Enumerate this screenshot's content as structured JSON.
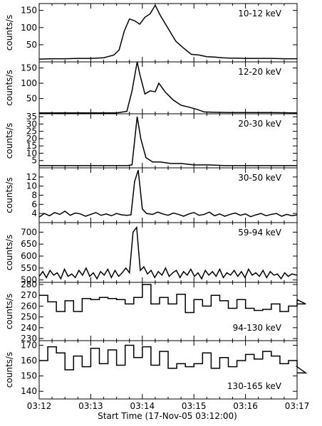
{
  "chart_data": {
    "type": "line",
    "xlabel": "Start Time (17-Nov-05 03:12:00)",
    "xlim": [
      "03:12",
      "03:17"
    ],
    "x_ticks": [
      "03:12",
      "03:13",
      "03:14",
      "03:15",
      "03:16",
      "03:17"
    ],
    "panels": [
      {
        "label": "10-12 keV",
        "ylabel": "counts/s",
        "style": "line",
        "ylim": [
          0,
          170
        ],
        "y_ticks": [
          50,
          100,
          150
        ],
        "x_minutes": [
          0,
          0.25,
          0.5,
          0.75,
          1.0,
          1.25,
          1.45,
          1.55,
          1.65,
          1.75,
          1.85,
          1.95,
          2.05,
          2.15,
          2.25,
          2.35,
          2.45,
          2.55,
          2.65,
          2.8,
          2.95,
          3.1,
          3.25,
          3.4,
          3.55,
          3.7,
          3.85,
          4.0,
          4.25,
          4.5,
          4.75,
          5.0
        ],
        "values": [
          8,
          9,
          9,
          10,
          10,
          12,
          20,
          35,
          90,
          125,
          120,
          110,
          130,
          140,
          165,
          135,
          110,
          85,
          60,
          40,
          22,
          20,
          15,
          14,
          12,
          11,
          11,
          10,
          10,
          10,
          9,
          9
        ]
      },
      {
        "label": "12-20 keV",
        "ylabel": "counts/s",
        "style": "line",
        "ylim": [
          0,
          170
        ],
        "y_ticks": [
          50,
          100,
          150
        ],
        "x_minutes": [
          0,
          0.25,
          0.5,
          0.75,
          1.0,
          1.25,
          1.5,
          1.7,
          1.8,
          1.9,
          1.95,
          2.05,
          2.15,
          2.25,
          2.32,
          2.45,
          2.6,
          2.75,
          2.9,
          3.05,
          3.2,
          3.4,
          3.7,
          4.0,
          4.5,
          5.0
        ],
        "values": [
          3,
          3,
          3,
          3,
          3,
          3,
          3,
          8,
          75,
          170,
          130,
          65,
          75,
          72,
          100,
          70,
          45,
          28,
          22,
          15,
          6,
          5,
          4,
          4,
          4,
          3
        ]
      },
      {
        "label": "20-30 keV",
        "ylabel": "counts/s",
        "style": "line",
        "ylim": [
          0,
          37
        ],
        "y_ticks": [
          5,
          10,
          15,
          20,
          25,
          30,
          35
        ],
        "x_minutes": [
          0,
          0.3,
          0.6,
          0.9,
          1.2,
          1.5,
          1.7,
          1.8,
          1.9,
          1.97,
          2.07,
          2.2,
          2.35,
          2.55,
          2.75,
          3.0,
          3.3,
          3.6,
          3.9,
          4.2,
          4.5,
          4.8,
          5.0
        ],
        "values": [
          1.5,
          1.5,
          1.5,
          1.5,
          1.5,
          1.5,
          1.5,
          2,
          35,
          20,
          7,
          4,
          4,
          3,
          3,
          2,
          2,
          1.5,
          1.5,
          1.5,
          1.5,
          1.5,
          1.5
        ]
      },
      {
        "label": "30-50 keV",
        "ylabel": "counts/s",
        "style": "line",
        "ylim": [
          2,
          14
        ],
        "y_ticks": [
          4,
          6,
          8,
          10,
          12
        ],
        "x_minutes": [
          0,
          0.1,
          0.2,
          0.3,
          0.4,
          0.5,
          0.6,
          0.7,
          0.8,
          0.9,
          1.0,
          1.1,
          1.2,
          1.3,
          1.4,
          1.5,
          1.6,
          1.7,
          1.78,
          1.85,
          1.92,
          2.0,
          2.08,
          2.2,
          2.3,
          2.4,
          2.5,
          2.6,
          2.7,
          2.8,
          2.9,
          3.0,
          3.1,
          3.2,
          3.3,
          3.4,
          3.5,
          3.6,
          3.7,
          3.8,
          3.9,
          4.0,
          4.1,
          4.2,
          4.3,
          4.4,
          4.5,
          4.6,
          4.7,
          4.8,
          4.9,
          5.0
        ],
        "values": [
          3.2,
          4.0,
          3.5,
          4.2,
          3.8,
          4.5,
          3.6,
          4.1,
          3.9,
          3.4,
          3.8,
          4.2,
          3.6,
          3.9,
          3.5,
          4.0,
          3.7,
          3.6,
          3.7,
          11,
          13.5,
          5,
          4,
          3.8,
          4.3,
          3.9,
          3.6,
          4.1,
          3.8,
          3.4,
          3.9,
          4.2,
          3.6,
          3.8,
          4.3,
          3.5,
          3.9,
          3.4,
          3.8,
          4.1,
          3.6,
          3.9,
          3.3,
          3.7,
          4.0,
          3.5,
          3.8,
          4.0,
          3.4,
          3.8,
          3.5,
          3.7
        ]
      },
      {
        "label": "59-94 keV",
        "ylabel": "counts/s",
        "style": "line",
        "ylim": [
          490,
          740
        ],
        "y_ticks": [
          500,
          550,
          600,
          650,
          700
        ],
        "x_minutes": [
          0,
          0.07,
          0.14,
          0.21,
          0.28,
          0.35,
          0.42,
          0.49,
          0.56,
          0.63,
          0.7,
          0.77,
          0.84,
          0.91,
          0.98,
          1.05,
          1.12,
          1.19,
          1.26,
          1.33,
          1.4,
          1.47,
          1.54,
          1.61,
          1.68,
          1.75,
          1.82,
          1.89,
          1.96,
          2.03,
          2.1,
          2.17,
          2.24,
          2.31,
          2.38,
          2.45,
          2.52,
          2.59,
          2.66,
          2.73,
          2.8,
          2.87,
          2.94,
          3.01,
          3.08,
          3.15,
          3.22,
          3.29,
          3.36,
          3.43,
          3.5,
          3.57,
          3.64,
          3.71,
          3.78,
          3.85,
          3.92,
          3.99,
          4.06,
          4.13,
          4.2,
          4.27,
          4.34,
          4.41,
          4.48,
          4.55,
          4.62,
          4.69,
          4.76,
          4.83,
          4.9,
          5.0
        ],
        "values": [
          515,
          535,
          510,
          540,
          520,
          530,
          505,
          545,
          515,
          525,
          510,
          540,
          520,
          550,
          515,
          530,
          505,
          535,
          520,
          545,
          510,
          540,
          515,
          530,
          550,
          530,
          700,
          720,
          540,
          555,
          525,
          540,
          510,
          535,
          520,
          550,
          515,
          530,
          540,
          510,
          535,
          520,
          545,
          515,
          530,
          505,
          540,
          520,
          535,
          515,
          545,
          510,
          530,
          520,
          540,
          515,
          535,
          510,
          545,
          520,
          530,
          515,
          540,
          510,
          535,
          520,
          525,
          505,
          530,
          515,
          525,
          520
        ]
      },
      {
        "label": "94-130 keV",
        "ylabel": "counts/s",
        "style": "step",
        "ylim": [
          228,
          282
        ],
        "y_ticks": [
          230,
          240,
          250,
          260,
          270,
          280
        ],
        "bin_width_minutes": 0.1667,
        "values": [
          270,
          264,
          255,
          265,
          255,
          267,
          266,
          268,
          267,
          266,
          262,
          268,
          280,
          262,
          268,
          262,
          271,
          254,
          266,
          260,
          270,
          265,
          258,
          266,
          258,
          256,
          257,
          262,
          255,
          260,
          266,
          262
        ]
      },
      {
        "label": "130-165 keV",
        "ylabel": "counts/s",
        "style": "step",
        "ylim": [
          135,
          173
        ],
        "y_ticks": [
          140,
          150,
          160,
          170
        ],
        "bin_width_minutes": 0.1667,
        "values": [
          160,
          169,
          165,
          154,
          163,
          156,
          168,
          158,
          167,
          157,
          170,
          162,
          169,
          157,
          166,
          155,
          158,
          156,
          158,
          165,
          155,
          162,
          156,
          160,
          164,
          161,
          166,
          163,
          158,
          160,
          156,
          152
        ]
      }
    ]
  }
}
